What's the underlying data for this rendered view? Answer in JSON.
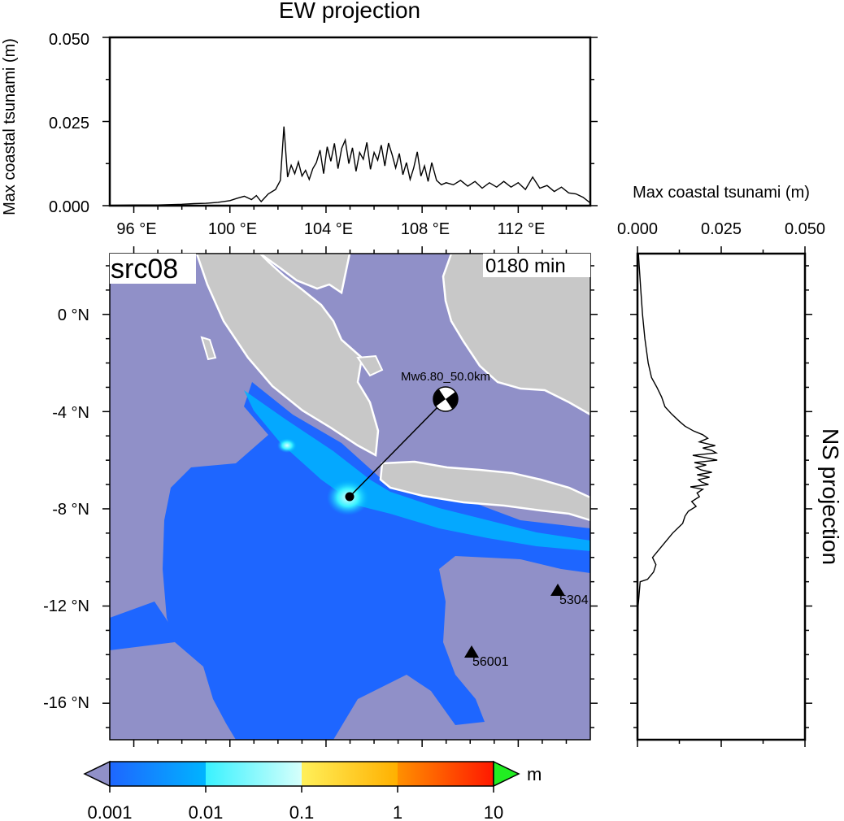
{
  "ew_panel": {
    "title": "EW projection",
    "ylabel": "Max coastal tsunami (m)",
    "y_ticks": [
      "0.000",
      "0.025",
      "0.050"
    ],
    "x_ticks": [
      "96 °E",
      "100 °E",
      "104 °E",
      "108 °E",
      "112 °E"
    ]
  },
  "ns_panel": {
    "title": "NS projection",
    "xlabel": "Max coastal tsunami (m)",
    "x_ticks": [
      "0.000",
      "0.025",
      "0.050"
    ]
  },
  "map_panel": {
    "source_label": "src08",
    "time_label": "0180 min",
    "lat_ticks": [
      "0 °N",
      "-4 °N",
      "-8 °N",
      "-12 °N",
      "-16 °N"
    ],
    "quake_label": "Mw6.80_50.0km",
    "stations": [
      {
        "label": "5304",
        "lon": 114.7,
        "lat": -11.4
      },
      {
        "label": "56001",
        "lon": 110.8,
        "lat": -13.9
      }
    ],
    "epicenter": {
      "lon": 104.8,
      "lat": -7.5
    },
    "beachball": {
      "lon": 109.5,
      "lat": -3.6
    }
  },
  "colorbar": {
    "unit": "m",
    "ticks": [
      "0.001",
      "0.01",
      "0.1",
      "1",
      "10"
    ],
    "colors": [
      "#1e66ff",
      "#00b4ff",
      "#39f2ff",
      "#fff05a",
      "#ffb000",
      "#ff2400",
      "#22ee22",
      "#9090c8"
    ]
  },
  "chart_data": [
    {
      "type": "line",
      "title": "EW projection",
      "xlabel": "",
      "ylabel": "Max coastal tsunami (m)",
      "xlim": [
        95,
        115
      ],
      "ylim": [
        0,
        0.05
      ],
      "x_unit": "°E",
      "series": [
        {
          "x": [
            95.0,
            96.0,
            97.0,
            98.0,
            98.5,
            99.0,
            99.5,
            100.0,
            100.3,
            100.6,
            100.9,
            101.1,
            101.3,
            101.6,
            101.9,
            102.1,
            102.25,
            102.4,
            102.55,
            102.7,
            102.85,
            103.0,
            103.15,
            103.3,
            103.45,
            103.6,
            103.75,
            103.9,
            104.05,
            104.2,
            104.35,
            104.5,
            104.65,
            104.8,
            104.95,
            105.1,
            105.25,
            105.4,
            105.55,
            105.7,
            105.85,
            106.0,
            106.15,
            106.3,
            106.45,
            106.6,
            106.75,
            106.9,
            107.05,
            107.2,
            107.35,
            107.5,
            107.65,
            107.8,
            107.95,
            108.1,
            108.25,
            108.4,
            108.6,
            108.8,
            109.0,
            109.3,
            109.6,
            109.9,
            110.2,
            110.5,
            110.8,
            111.1,
            111.4,
            111.7,
            112.0,
            112.3,
            112.6,
            112.9,
            113.2,
            113.5,
            113.8,
            114.1,
            114.4,
            114.7,
            115.0
          ],
          "y": [
            0.0001,
            0.0002,
            0.0002,
            0.0004,
            0.0006,
            0.0007,
            0.001,
            0.0015,
            0.0022,
            0.0028,
            0.0018,
            0.003,
            0.0012,
            0.0035,
            0.0048,
            0.0075,
            0.0235,
            0.0085,
            0.012,
            0.0095,
            0.013,
            0.0088,
            0.0105,
            0.0078,
            0.011,
            0.0128,
            0.0165,
            0.0095,
            0.0175,
            0.0132,
            0.0185,
            0.011,
            0.017,
            0.0195,
            0.0125,
            0.0172,
            0.0102,
            0.0158,
            0.0138,
            0.0188,
            0.0108,
            0.0158,
            0.0135,
            0.018,
            0.0118,
            0.0186,
            0.0152,
            0.0112,
            0.0155,
            0.0092,
            0.0128,
            0.0078,
            0.0112,
            0.016,
            0.0088,
            0.0118,
            0.0072,
            0.0128,
            0.0075,
            0.0062,
            0.0068,
            0.0062,
            0.0075,
            0.0058,
            0.0072,
            0.0052,
            0.0068,
            0.0055,
            0.0072,
            0.0055,
            0.0068,
            0.0048,
            0.0085,
            0.0052,
            0.006,
            0.0042,
            0.0055,
            0.0038,
            0.0035,
            0.0025,
            0.0008
          ]
        }
      ]
    },
    {
      "type": "line",
      "title": "NS projection",
      "xlabel": "Max coastal tsunami (m)",
      "ylabel": "",
      "xlim": [
        0,
        0.05
      ],
      "ylim": [
        -17.5,
        2.5
      ],
      "y_unit": "°N",
      "series": [
        {
          "y": [
            2.5,
            2.0,
            1.0,
            0.0,
            -1.0,
            -2.0,
            -2.6,
            -3.0,
            -3.4,
            -3.8,
            -4.1,
            -4.4,
            -4.6,
            -4.8,
            -4.95,
            -5.1,
            -5.25,
            -5.4,
            -5.5,
            -5.6,
            -5.7,
            -5.8,
            -5.9,
            -6.0,
            -6.1,
            -6.2,
            -6.3,
            -6.4,
            -6.5,
            -6.6,
            -6.7,
            -6.8,
            -6.9,
            -7.0,
            -7.1,
            -7.2,
            -7.35,
            -7.5,
            -7.7,
            -7.9,
            -8.1,
            -8.3,
            -8.6,
            -9.0,
            -9.5,
            -10.0,
            -10.3,
            -10.6,
            -10.9,
            -11.0,
            -12.0,
            -14.0,
            -17.5
          ],
          "x": [
            0.0003,
            0.0005,
            0.001,
            0.0015,
            0.0022,
            0.0032,
            0.0042,
            0.0058,
            0.0072,
            0.0082,
            0.0102,
            0.0125,
            0.0142,
            0.0168,
            0.0195,
            0.021,
            0.0185,
            0.0232,
            0.0195,
            0.0222,
            0.0235,
            0.0165,
            0.0205,
            0.0238,
            0.017,
            0.0205,
            0.0175,
            0.019,
            0.0222,
            0.0178,
            0.0215,
            0.0182,
            0.0192,
            0.0212,
            0.0158,
            0.0195,
            0.0178,
            0.0185,
            0.0162,
            0.0175,
            0.0152,
            0.0142,
            0.0135,
            0.0105,
            0.0075,
            0.0045,
            0.0055,
            0.0048,
            0.003,
            0.0008,
            0.0002,
            0.0001,
            0.0
          ]
        }
      ]
    }
  ]
}
